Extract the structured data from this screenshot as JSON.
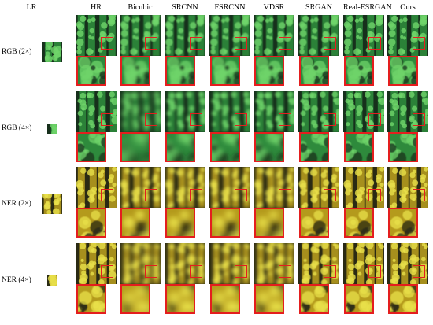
{
  "lr_header": "LR",
  "columns": [
    "HR",
    "Bicubic",
    "SRCNN",
    "FSRCNN",
    "VDSR",
    "SRGAN",
    "Real-ESRGAN",
    "Ours"
  ],
  "rows": [
    {
      "label": "RGB (2×)",
      "palette": "rgb",
      "blur": [
        0,
        1.2,
        0.8,
        0.8,
        0.6,
        0.2,
        0,
        0
      ]
    },
    {
      "label": "RGB (4×)",
      "palette": "rgb",
      "blur": [
        0,
        4.5,
        2.8,
        2.6,
        2.2,
        0.3,
        0.1,
        0
      ]
    },
    {
      "label": "NER (2×)",
      "palette": "ner",
      "blur": [
        0,
        2.5,
        3.0,
        3.0,
        3.2,
        0.3,
        0,
        0
      ]
    },
    {
      "label": "NER (4×)",
      "palette": "ner",
      "blur": [
        0,
        4.5,
        3.5,
        3.5,
        3.5,
        0.4,
        0.1,
        0
      ]
    }
  ],
  "colors": {
    "highlight": "#e41e1e",
    "rgb_dark": "#17301c",
    "rgb_mid": "#2e8a3c",
    "rgb_light": "#6fd46a",
    "ner_dark": "#2a2a14",
    "ner_mid": "#b49a1c",
    "ner_light": "#e8e04a"
  }
}
